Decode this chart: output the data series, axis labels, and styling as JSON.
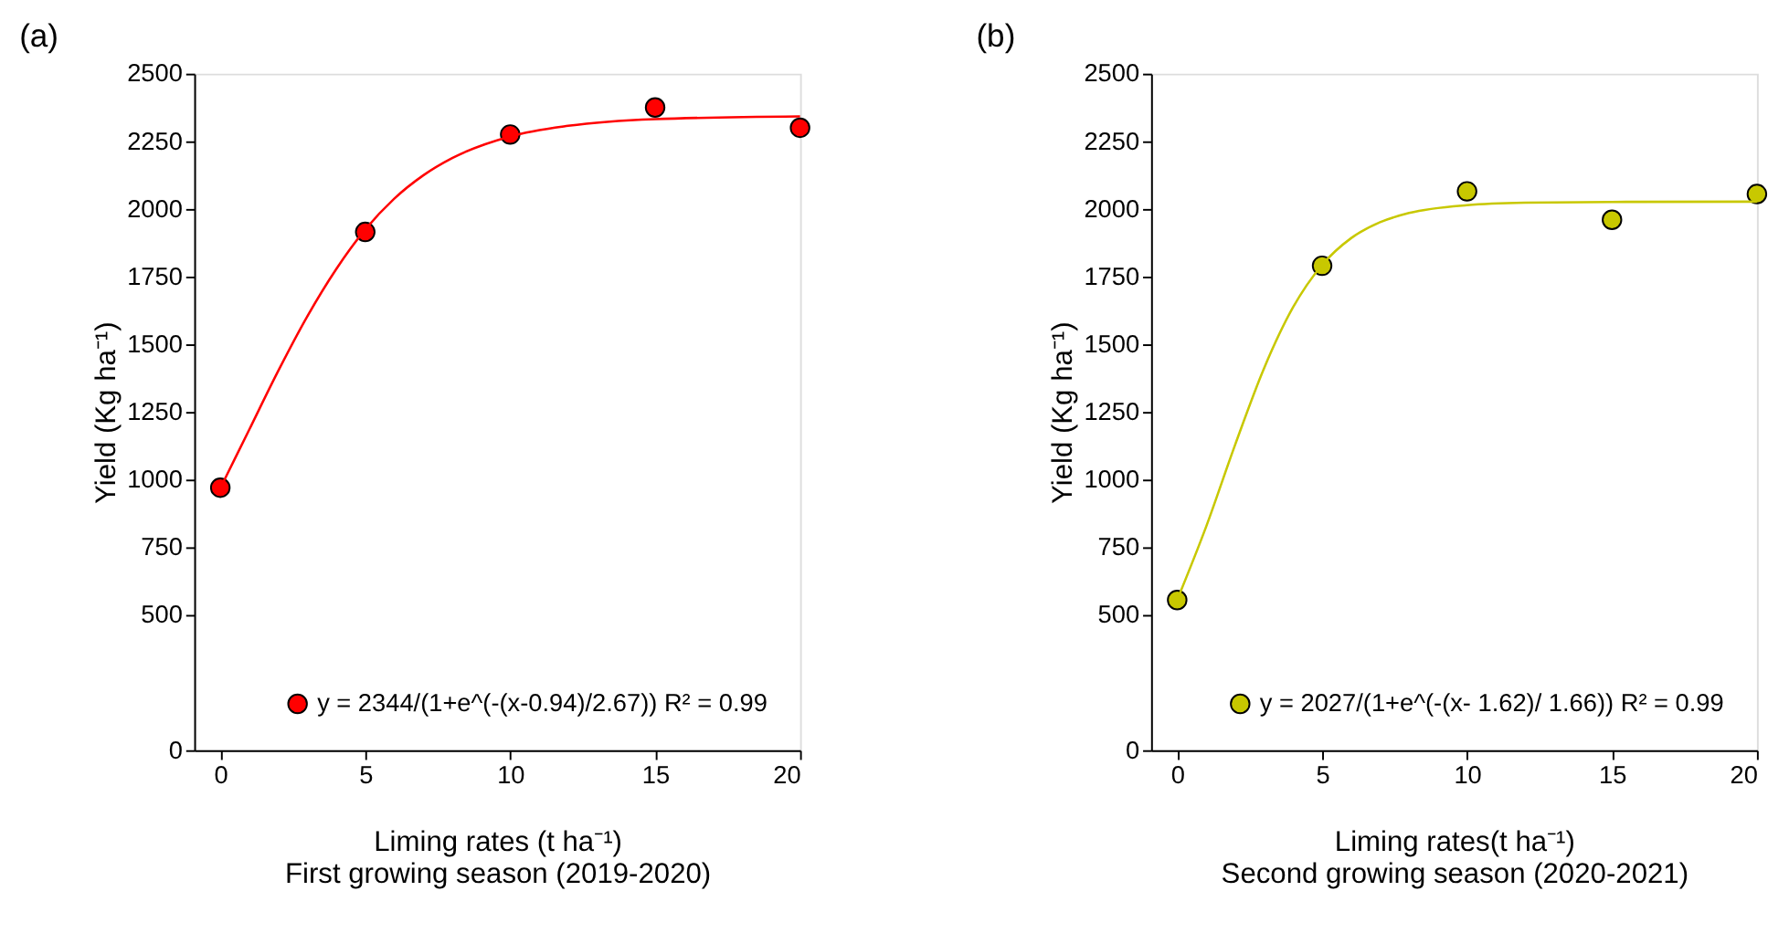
{
  "chart_data": [
    {
      "type": "scatter",
      "title": "(a)",
      "xlabel": "Liming rates (t ha⁻¹)",
      "ylabel": "Yield (Kg ha⁻¹)",
      "annotations": [
        "First growing season (2019-2020)"
      ],
      "x": [
        0,
        5,
        10,
        15,
        20
      ],
      "series": [
        {
          "type": "scatter",
          "marker": "circle",
          "name": "y = 2344/(1+e^(-(x-0.94)/2.67)) R² = 0.99",
          "color": "#ff0000",
          "values": [
            970,
            1915,
            2275,
            2375,
            2300
          ]
        },
        {
          "type": "line",
          "marker": "none",
          "line_style": "solid",
          "color": "#ff0000",
          "x": [
            0,
            1,
            2,
            3,
            4,
            5,
            6,
            7,
            8,
            10,
            12,
            15,
            20
          ],
          "values": [
            968,
            1185,
            1402,
            1603,
            1778,
            1924,
            2038,
            2124,
            2188,
            2268,
            2307,
            2332,
            2342
          ]
        }
      ],
      "xlim": [
        -0.9,
        20
      ],
      "xticks": [
        0,
        5,
        10,
        15,
        20
      ],
      "ylim": [
        0,
        2500
      ],
      "yticks": [
        0,
        500,
        750,
        1000,
        1250,
        1500,
        1750,
        2000,
        2250,
        2500
      ],
      "grid": false,
      "legend": "bottom right"
    },
    {
      "type": "scatter",
      "title": "(b)",
      "xlabel": "Liming rates(t ha⁻¹)",
      "ylabel": "Yield (Kg ha⁻¹)",
      "annotations": [
        "Second growing season (2020-2021)"
      ],
      "x": [
        0,
        5,
        10,
        15,
        20
      ],
      "series": [
        {
          "type": "scatter",
          "marker": "circle",
          "name": "y = 2027/(1+e^(-(x- 1.62)/ 1.66)) R² = 0.99",
          "color": "#c8c800",
          "values": [
            555,
            1790,
            2065,
            1960,
            2055
          ]
        },
        {
          "type": "line",
          "marker": "none",
          "line_style": "solid",
          "color": "#c8c800",
          "x": [
            0,
            1,
            2,
            3,
            4,
            5,
            6,
            7,
            8,
            10,
            12,
            15,
            20
          ],
          "values": [
            555,
            826,
            1129,
            1412,
            1637,
            1793,
            1892,
            1951,
            1985,
            2014,
            2023,
            2026,
            2027
          ]
        }
      ],
      "xlim": [
        -0.9,
        20
      ],
      "xticks": [
        0,
        5,
        10,
        15,
        20
      ],
      "ylim": [
        0,
        2500
      ],
      "yticks": [
        0,
        500,
        750,
        1000,
        1250,
        1500,
        1750,
        2000,
        2250,
        2500
      ],
      "grid": false,
      "legend": "bottom right"
    }
  ]
}
